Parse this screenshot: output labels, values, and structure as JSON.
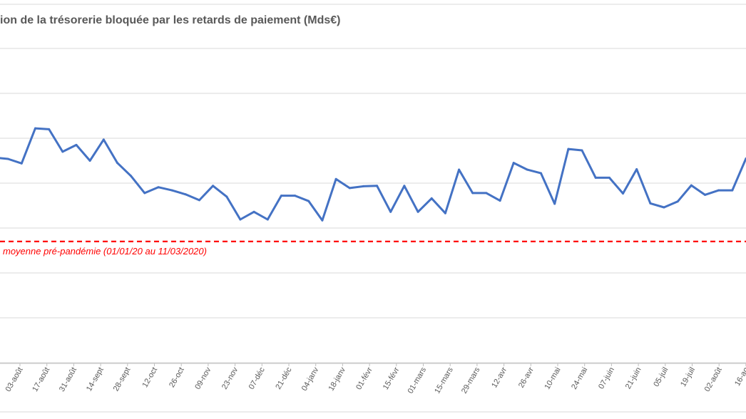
{
  "chart_data": {
    "type": "line",
    "title": "ion de la trésorerie bloquée par les retards de paiement (Mds€)",
    "x_tick_labels": [
      "03-août",
      "17-août",
      "31-août",
      "14-sept",
      "28-sept",
      "12-oct",
      "26-oct",
      "09-nov",
      "23-nov",
      "07-déc",
      "21-déc",
      "04-janv",
      "18-janv",
      "01-févr",
      "15-févr",
      "01-mars",
      "15-mars",
      "29-mars",
      "12-avr",
      "26-avr",
      "10-mai",
      "24-mai",
      "07-juin",
      "21-juin",
      "05-juil",
      "19-juil",
      "02-août",
      "16-ao"
    ],
    "y_gridlines": 8,
    "grid": true,
    "series": [
      {
        "color": "#4472C4",
        "values": [
          3.07,
          3.04,
          2.94,
          3.72,
          3.7,
          3.2,
          3.35,
          3.0,
          3.47,
          2.95,
          2.66,
          2.28,
          2.41,
          2.34,
          2.25,
          2.12,
          2.44,
          2.2,
          1.69,
          1.86,
          1.69,
          2.22,
          2.22,
          2.1,
          1.67,
          2.59,
          2.39,
          2.43,
          2.44,
          1.86,
          2.44,
          1.86,
          2.16,
          1.83,
          2.8,
          2.28,
          2.28,
          2.11,
          2.95,
          2.8,
          2.72,
          2.04,
          3.26,
          3.23,
          2.62,
          2.62,
          2.27,
          2.81,
          2.05,
          1.96,
          2.09,
          2.45,
          2.24,
          2.34,
          2.34,
          3.05
        ]
      }
    ],
    "reference_line": {
      "label": "moyenne pré-pandémie (01/01/20 au 11/03/2020)",
      "value": 1.2,
      "color": "#FF0000",
      "style": "dashed"
    }
  }
}
